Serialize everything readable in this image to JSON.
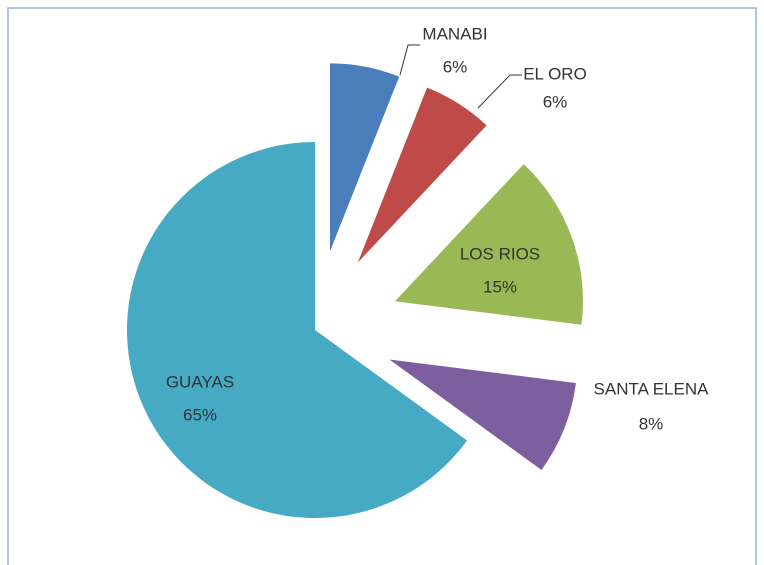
{
  "chart_data": {
    "type": "pie",
    "categories": [
      "MANABI",
      "EL ORO",
      "LOS RIOS",
      "SANTA ELENA",
      "GUAYAS"
    ],
    "values": [
      6,
      6,
      15,
      8,
      65
    ],
    "value_labels": [
      "6%",
      "6%",
      "15%",
      "8%",
      "65%"
    ],
    "colors": [
      "#4a7ebb",
      "#be4b48",
      "#98b954",
      "#7d5fa0",
      "#46aac5"
    ]
  }
}
